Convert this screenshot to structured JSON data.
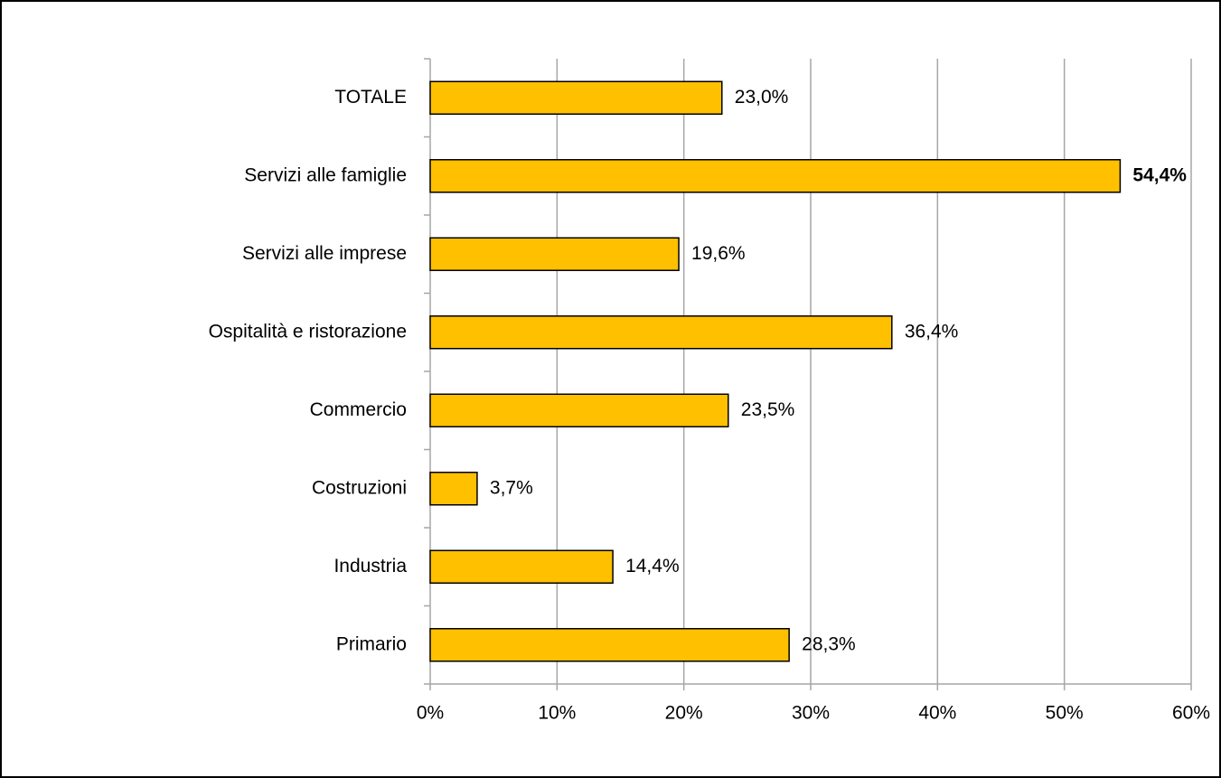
{
  "chart_data": {
    "type": "bar",
    "orientation": "horizontal",
    "categories": [
      "TOTALE",
      "Servizi alle famiglie",
      "Servizi alle imprese",
      "Ospitalità e ristorazione",
      "Commercio",
      "Costruzioni",
      "Industria",
      "Primario"
    ],
    "values": [
      23.0,
      54.4,
      19.6,
      36.4,
      23.5,
      3.7,
      14.4,
      28.3
    ],
    "value_labels": [
      "23,0%",
      "54,4%",
      "19,6%",
      "36,4%",
      "23,5%",
      "3,7%",
      "14,4%",
      "28,3%"
    ],
    "color": "#ffc000",
    "highlight": {
      "index": 1,
      "color": "#ff0000"
    },
    "xlim": [
      0,
      60
    ],
    "xticks": [
      {
        "value": 0,
        "label": "0%"
      },
      {
        "value": 10,
        "label": "10%"
      },
      {
        "value": 20,
        "label": "20%"
      },
      {
        "value": 30,
        "label": "30%"
      },
      {
        "value": 40,
        "label": "40%"
      },
      {
        "value": 50,
        "label": "50%"
      },
      {
        "value": 60,
        "label": "60%"
      }
    ],
    "grid": true
  }
}
